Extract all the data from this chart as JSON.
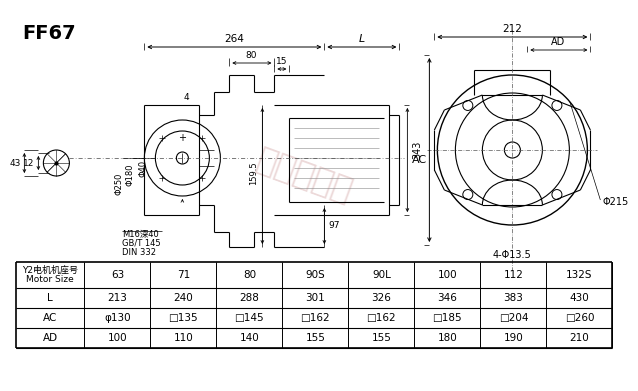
{
  "title": "FF67",
  "bg_color": "#ffffff",
  "table_header": [
    "Y2电机机座号\nMotor Size",
    "63",
    "71",
    "80",
    "90S",
    "90L",
    "100",
    "112",
    "132S"
  ],
  "row_L": [
    "L",
    "213",
    "240",
    "288",
    "301",
    "326",
    "346",
    "383",
    "430"
  ],
  "row_AC": [
    "AC",
    "φ130",
    "□135",
    "□145",
    "□162",
    "□162",
    "□185",
    "□204",
    "□260"
  ],
  "row_AD": [
    "AD",
    "100",
    "110",
    "140",
    "155",
    "155",
    "180",
    "190",
    "210"
  ],
  "watermark": "瓦玛特博士",
  "dim_264": "264",
  "dim_L": "L",
  "dim_15": "15",
  "dim_80": "80",
  "dim_4": "4",
  "dim_12": "12",
  "dim_43": "43",
  "dim_97": "97",
  "dim_159_5": "159.5",
  "dim_250": "Φ250",
  "dim_180": "Φ180",
  "dim_40": "Φ40",
  "dim_AC": "AC",
  "dim_343": "343",
  "dim_212": "212",
  "dim_AD": "AD",
  "dim_215": "Φ215",
  "dim_413_5": "4-Φ13.5",
  "note_m16": "M16深40",
  "note_gbt": "GB/T 145",
  "note_din": "DIN 332"
}
